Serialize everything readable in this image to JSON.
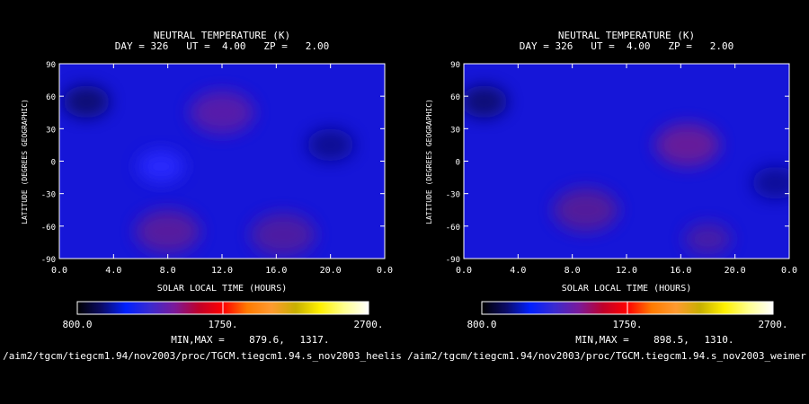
{
  "colorbar_colors": [
    "#000000",
    "#0b0b66",
    "#0020ff",
    "#3a2ad0",
    "#7a1a9a",
    "#c0002a",
    "#ff0000",
    "#ff7a00",
    "#ff9a30",
    "#c8b000",
    "#fff000",
    "#ffff90",
    "#ffffff"
  ],
  "chart_data": [
    {
      "type": "heatmap",
      "title": "NEUTRAL TEMPERATURE (K)",
      "subtitle": "DAY = 326   UT =  4.00   ZP =   2.00",
      "xlabel": "SOLAR LOCAL TIME (HOURS)",
      "ylabel": "LATITUDE (DEGREES GEOGRAPHIC)",
      "xticks": [
        "0.0",
        "4.0",
        "8.0",
        "12.0",
        "16.0",
        "20.0",
        "0.0"
      ],
      "yticks": [
        "90",
        "60",
        "30",
        "0",
        "-30",
        "-60",
        "-90"
      ],
      "xlim": [
        0,
        24
      ],
      "ylim": [
        -90,
        90
      ],
      "background_color": "#1616d8",
      "features": [
        {
          "x": 12.0,
          "y": 45,
          "value": 1317,
          "color": "#5a1ca8"
        },
        {
          "x": 8.0,
          "y": -65,
          "value": 1250,
          "color": "#5a1c9c"
        },
        {
          "x": 16.5,
          "y": -68,
          "value": 1230,
          "color": "#501ca0"
        },
        {
          "x": 7.5,
          "y": -5,
          "value": 1050,
          "color": "#2a2aff"
        },
        {
          "x": 2.0,
          "y": 55,
          "value": 880,
          "color": "#0a0a6e"
        },
        {
          "x": 20.0,
          "y": 15,
          "value": 900,
          "color": "#0c0c90"
        }
      ],
      "colorbar": {
        "ticks": [
          "800.0",
          "1750.",
          "2700."
        ],
        "range": [
          800,
          2700
        ]
      },
      "minmax_label": "MIN,MAX =",
      "min": "879.6,",
      "max": "1317.",
      "file": "/aim2/tgcm/tiegcm1.94/nov2003/proc/TGCM.tiegcm1.94.s_nov2003_heelis"
    },
    {
      "type": "heatmap",
      "title": "NEUTRAL TEMPERATURE (K)",
      "subtitle": "DAY = 326   UT =  4.00   ZP =   2.00",
      "xlabel": "SOLAR LOCAL TIME (HOURS)",
      "ylabel": "LATITUDE (DEGREES GEOGRAPHIC)",
      "xticks": [
        "0.0",
        "4.0",
        "8.0",
        "12.0",
        "16.0",
        "20.0",
        "0.0"
      ],
      "yticks": [
        "90",
        "60",
        "30",
        "0",
        "-30",
        "-60",
        "-90"
      ],
      "xlim": [
        0,
        24
      ],
      "ylim": [
        -90,
        90
      ],
      "background_color": "#1616d8",
      "features": [
        {
          "x": 16.5,
          "y": 15,
          "value": 1310,
          "color": "#6a1a98"
        },
        {
          "x": 9.0,
          "y": -45,
          "value": 1260,
          "color": "#561c98"
        },
        {
          "x": 18.0,
          "y": -72,
          "value": 1200,
          "color": "#481ca6"
        },
        {
          "x": 1.5,
          "y": 55,
          "value": 898,
          "color": "#0a0a70"
        },
        {
          "x": 23.0,
          "y": -20,
          "value": 950,
          "color": "#0c0c96"
        }
      ],
      "colorbar": {
        "ticks": [
          "800.0",
          "1750.",
          "2700."
        ],
        "range": [
          800,
          2700
        ]
      },
      "minmax_label": "MIN,MAX =",
      "min": "898.5,",
      "max": "1310.",
      "file": "/aim2/tgcm/tiegcm1.94/nov2003/proc/TGCM.tiegcm1.94.s_nov2003_weimer"
    }
  ]
}
